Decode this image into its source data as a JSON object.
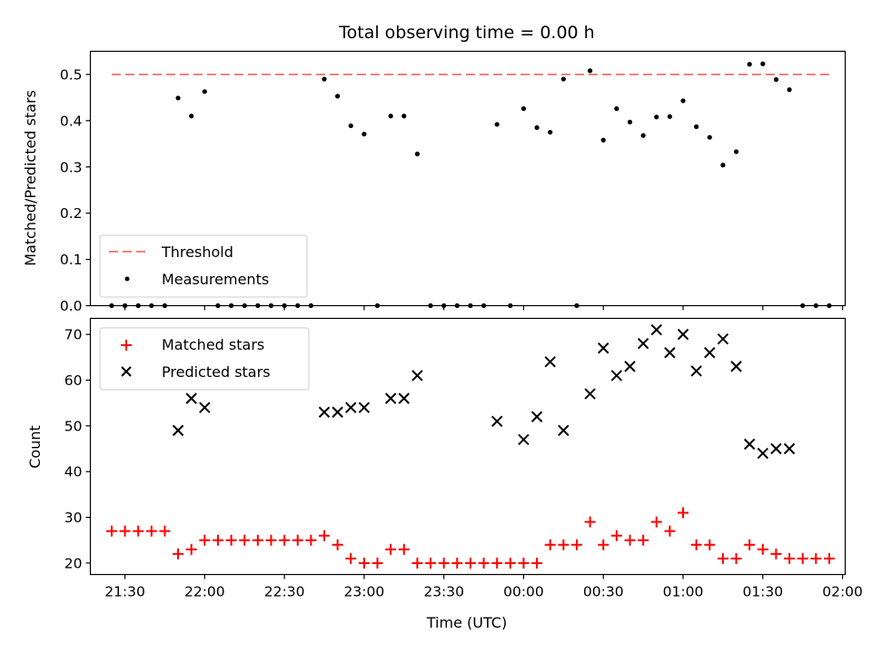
{
  "chart_data": [
    {
      "type": "scatter",
      "title": "Total observing time = 0.00 h",
      "ylabel": "Matched/Predicted stars",
      "xlabel": "",
      "xlim": [
        "21:17",
        "02:01"
      ],
      "ylim": [
        0,
        0.55
      ],
      "yticks": [
        "0.0",
        "0.1",
        "0.2",
        "0.3",
        "0.4",
        "0.5"
      ],
      "threshold": 0.5,
      "legend_position": "lower-left",
      "legend": [
        "Threshold",
        "Measurements"
      ],
      "colors": {
        "threshold": "#f08080",
        "measurements": "#000000"
      },
      "series": [
        {
          "name": "Measurements",
          "points": [
            [
              "21:25",
              0
            ],
            [
              "21:30",
              0
            ],
            [
              "21:35",
              0
            ],
            [
              "21:40",
              0
            ],
            [
              "21:45",
              0
            ],
            [
              "21:50",
              0.449
            ],
            [
              "21:55",
              0.41
            ],
            [
              "22:00",
              0.463
            ],
            [
              "22:05",
              0
            ],
            [
              "22:10",
              0
            ],
            [
              "22:15",
              0
            ],
            [
              "22:20",
              0
            ],
            [
              "22:25",
              0
            ],
            [
              "22:30",
              0
            ],
            [
              "22:35",
              0
            ],
            [
              "22:40",
              0
            ],
            [
              "22:45",
              0.49
            ],
            [
              "22:50",
              0.453
            ],
            [
              "22:55",
              0.389
            ],
            [
              "23:00",
              0.371
            ],
            [
              "23:05",
              0
            ],
            [
              "23:10",
              0.41
            ],
            [
              "23:15",
              0.41
            ],
            [
              "23:20",
              0.328
            ],
            [
              "23:25",
              0
            ],
            [
              "23:30",
              0
            ],
            [
              "23:35",
              0
            ],
            [
              "23:40",
              0
            ],
            [
              "23:45",
              0
            ],
            [
              "23:55",
              0
            ],
            [
              "23:50",
              0.392
            ],
            [
              "00:00",
              0.426
            ],
            [
              "00:05",
              0.385
            ],
            [
              "00:10",
              0.375
            ],
            [
              "00:15",
              0.49
            ],
            [
              "00:20",
              0
            ],
            [
              "00:25",
              0.508
            ],
            [
              "00:30",
              0.358
            ],
            [
              "00:35",
              0.426
            ],
            [
              "00:40",
              0.397
            ],
            [
              "00:45",
              0.368
            ],
            [
              "00:50",
              0.408
            ],
            [
              "00:55",
              0.409
            ],
            [
              "01:00",
              0.443
            ],
            [
              "01:05",
              0.387
            ],
            [
              "01:10",
              0.364
            ],
            [
              "01:15",
              0.304
            ],
            [
              "01:20",
              0.333
            ],
            [
              "01:25",
              0.522
            ],
            [
              "01:30",
              0.523
            ],
            [
              "01:35",
              0.489
            ],
            [
              "01:40",
              0.467
            ],
            [
              "01:45",
              0
            ],
            [
              "01:50",
              0
            ],
            [
              "01:55",
              0
            ]
          ]
        }
      ]
    },
    {
      "type": "scatter",
      "title": "",
      "xlabel": "Time (UTC)",
      "ylabel": "Count",
      "xlim": [
        "21:17",
        "02:01"
      ],
      "ylim": [
        17.5,
        73.5
      ],
      "xticks": [
        "21:30",
        "22:00",
        "22:30",
        "23:00",
        "23:30",
        "00:00",
        "00:30",
        "01:00",
        "01:30",
        "02:00"
      ],
      "yticks": [
        "20",
        "30",
        "40",
        "50",
        "60",
        "70"
      ],
      "legend_position": "upper-left",
      "legend": [
        "Matched stars",
        "Predicted stars"
      ],
      "colors": {
        "matched": "#ff0000",
        "predicted": "#000000"
      },
      "series": [
        {
          "name": "Matched stars",
          "points": [
            [
              "21:25",
              27
            ],
            [
              "21:30",
              27
            ],
            [
              "21:35",
              27
            ],
            [
              "21:40",
              27
            ],
            [
              "21:45",
              27
            ],
            [
              "21:50",
              22
            ],
            [
              "21:55",
              23
            ],
            [
              "22:00",
              25
            ],
            [
              "22:05",
              25
            ],
            [
              "22:10",
              25
            ],
            [
              "22:15",
              25
            ],
            [
              "22:20",
              25
            ],
            [
              "22:25",
              25
            ],
            [
              "22:30",
              25
            ],
            [
              "22:35",
              25
            ],
            [
              "22:40",
              25
            ],
            [
              "22:45",
              26
            ],
            [
              "22:50",
              24
            ],
            [
              "22:55",
              21
            ],
            [
              "23:00",
              20
            ],
            [
              "23:05",
              20
            ],
            [
              "23:10",
              23
            ],
            [
              "23:15",
              23
            ],
            [
              "23:20",
              20
            ],
            [
              "23:25",
              20
            ],
            [
              "23:30",
              20
            ],
            [
              "23:35",
              20
            ],
            [
              "23:40",
              20
            ],
            [
              "23:45",
              20
            ],
            [
              "23:50",
              20
            ],
            [
              "23:55",
              20
            ],
            [
              "00:00",
              20
            ],
            [
              "00:05",
              20
            ],
            [
              "00:10",
              24
            ],
            [
              "00:15",
              24
            ],
            [
              "00:20",
              24
            ],
            [
              "00:25",
              29
            ],
            [
              "00:30",
              24
            ],
            [
              "00:35",
              26
            ],
            [
              "00:40",
              25
            ],
            [
              "00:45",
              25
            ],
            [
              "00:50",
              29
            ],
            [
              "00:55",
              27
            ],
            [
              "01:00",
              31
            ],
            [
              "01:05",
              24
            ],
            [
              "01:10",
              24
            ],
            [
              "01:15",
              21
            ],
            [
              "01:20",
              21
            ],
            [
              "01:25",
              24
            ],
            [
              "01:30",
              23
            ],
            [
              "01:35",
              22
            ],
            [
              "01:40",
              21
            ],
            [
              "01:45",
              21
            ],
            [
              "01:50",
              21
            ],
            [
              "01:55",
              21
            ]
          ]
        },
        {
          "name": "Predicted stars",
          "points": [
            [
              "21:50",
              49
            ],
            [
              "21:55",
              56
            ],
            [
              "22:00",
              54
            ],
            [
              "22:45",
              53
            ],
            [
              "22:50",
              53
            ],
            [
              "22:55",
              54
            ],
            [
              "23:00",
              54
            ],
            [
              "23:10",
              56
            ],
            [
              "23:15",
              56
            ],
            [
              "23:20",
              61
            ],
            [
              "23:50",
              51
            ],
            [
              "00:00",
              47
            ],
            [
              "00:05",
              52
            ],
            [
              "00:10",
              64
            ],
            [
              "00:15",
              49
            ],
            [
              "00:25",
              57
            ],
            [
              "00:30",
              67
            ],
            [
              "00:35",
              61
            ],
            [
              "00:40",
              63
            ],
            [
              "00:45",
              68
            ],
            [
              "00:50",
              71
            ],
            [
              "00:55",
              66
            ],
            [
              "01:00",
              70
            ],
            [
              "01:05",
              62
            ],
            [
              "01:10",
              66
            ],
            [
              "01:15",
              69
            ],
            [
              "01:20",
              63
            ],
            [
              "01:25",
              46
            ],
            [
              "01:30",
              44
            ],
            [
              "01:35",
              45
            ],
            [
              "01:40",
              45
            ]
          ]
        }
      ]
    }
  ]
}
